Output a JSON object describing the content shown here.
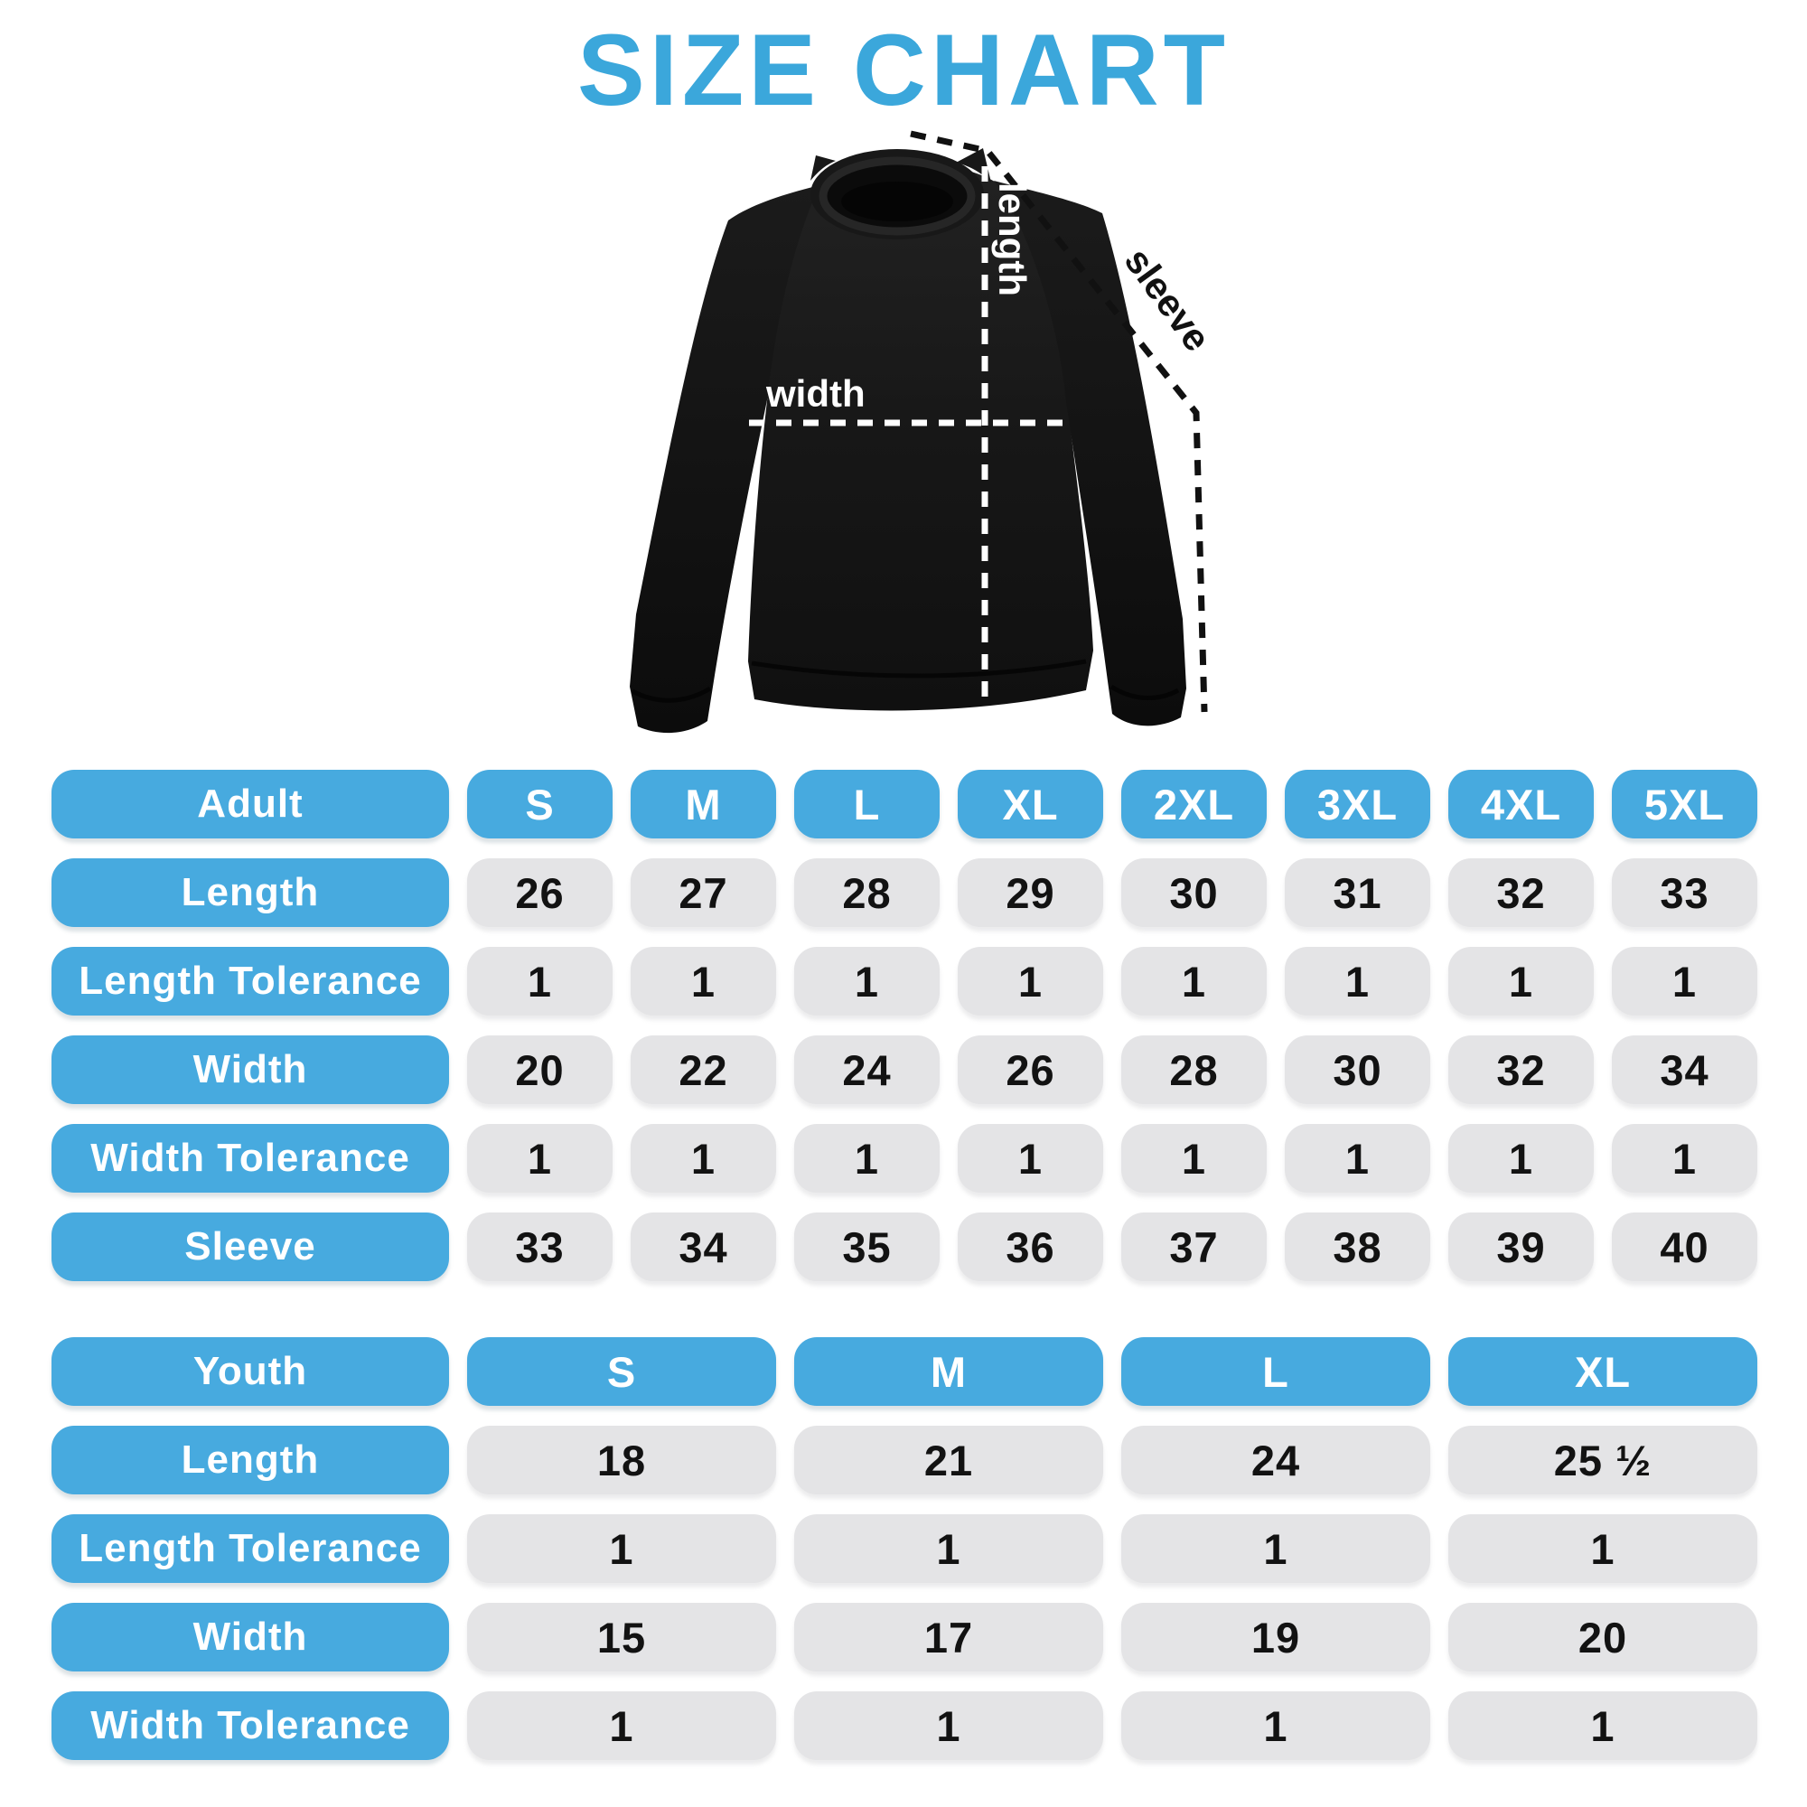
{
  "title": "SIZE CHART",
  "colors": {
    "accent": "#47AADF",
    "title_blue": "#3BA7DB",
    "cell_bg": "#E4E4E6",
    "text_dark": "#121212"
  },
  "diagram": {
    "labels": {
      "length": "length",
      "width": "width",
      "sleeve": "sleeve"
    }
  },
  "adult_table": {
    "header": {
      "label": "Adult",
      "sizes": [
        "S",
        "M",
        "L",
        "XL",
        "2XL",
        "3XL",
        "4XL",
        "5XL"
      ]
    },
    "rows": [
      {
        "label": "Length",
        "values": [
          "26",
          "27",
          "28",
          "29",
          "30",
          "31",
          "32",
          "33"
        ]
      },
      {
        "label": "Length Tolerance",
        "values": [
          "1",
          "1",
          "1",
          "1",
          "1",
          "1",
          "1",
          "1"
        ]
      },
      {
        "label": "Width",
        "values": [
          "20",
          "22",
          "24",
          "26",
          "28",
          "30",
          "32",
          "34"
        ]
      },
      {
        "label": "Width Tolerance",
        "values": [
          "1",
          "1",
          "1",
          "1",
          "1",
          "1",
          "1",
          "1"
        ]
      },
      {
        "label": "Sleeve",
        "values": [
          "33",
          "34",
          "35",
          "36",
          "37",
          "38",
          "39",
          "40"
        ]
      }
    ]
  },
  "youth_table": {
    "header": {
      "label": "Youth",
      "sizes": [
        "S",
        "M",
        "L",
        "XL"
      ]
    },
    "rows": [
      {
        "label": "Length",
        "values": [
          "18",
          "21",
          "24",
          "25 ½"
        ]
      },
      {
        "label": "Length Tolerance",
        "values": [
          "1",
          "1",
          "1",
          "1"
        ]
      },
      {
        "label": "Width",
        "values": [
          "15",
          "17",
          "19",
          "20"
        ]
      },
      {
        "label": "Width Tolerance",
        "values": [
          "1",
          "1",
          "1",
          "1"
        ]
      }
    ]
  }
}
